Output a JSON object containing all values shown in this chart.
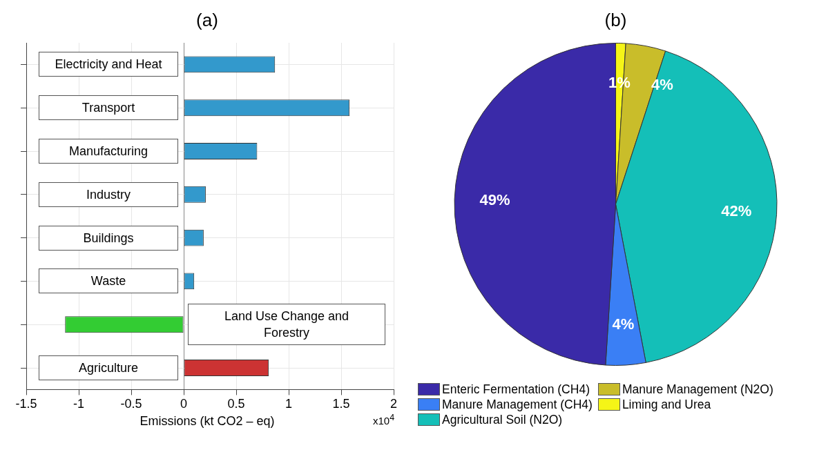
{
  "chart_data": [
    {
      "type": "bar",
      "title": "(a)",
      "orientation": "horizontal",
      "xlabel": "Emissions (kt CO2 – eq)",
      "annotations": [
        "x10$^{4}$"
      ],
      "categories": [
        "Electricity and Heat",
        "Transport",
        "Manufacturing",
        "Industry",
        "Buildings",
        "Waste",
        "Land Use Change and Forestry",
        "Agriculture"
      ],
      "values": [
        0.87,
        1.58,
        0.7,
        0.21,
        0.19,
        0.1,
        -1.13,
        0.81
      ],
      "colors": [
        "#3399cc",
        "#3399cc",
        "#3399cc",
        "#3399cc",
        "#3399cc",
        "#3399cc",
        "#33cc33",
        "#cc3333"
      ],
      "xlim": [
        -1.5,
        2
      ],
      "xticks": [
        -1.5,
        -1,
        -0.5,
        0,
        0.5,
        1,
        1.5,
        2
      ],
      "grid": true,
      "tick_labels": "x",
      "legend": false
    },
    {
      "type": "pie",
      "title": "(b)",
      "legend": "bottom",
      "categories": [
        "Enteric Fermentation (CH4)",
        "Manure Management (CH4)",
        "Agricultural Soil (N2O)",
        "Manure Management (N2O)",
        "Liming and Urea"
      ],
      "values": [
        49,
        4,
        42,
        4,
        1
      ],
      "value_labels": [
        "49%",
        "4%",
        "42%",
        "4%",
        "1%"
      ],
      "colors": [
        "#3a2aa8",
        "#3a7ff5",
        "#14bfb8",
        "#c9bd2a",
        "#f5f517"
      ]
    }
  ]
}
